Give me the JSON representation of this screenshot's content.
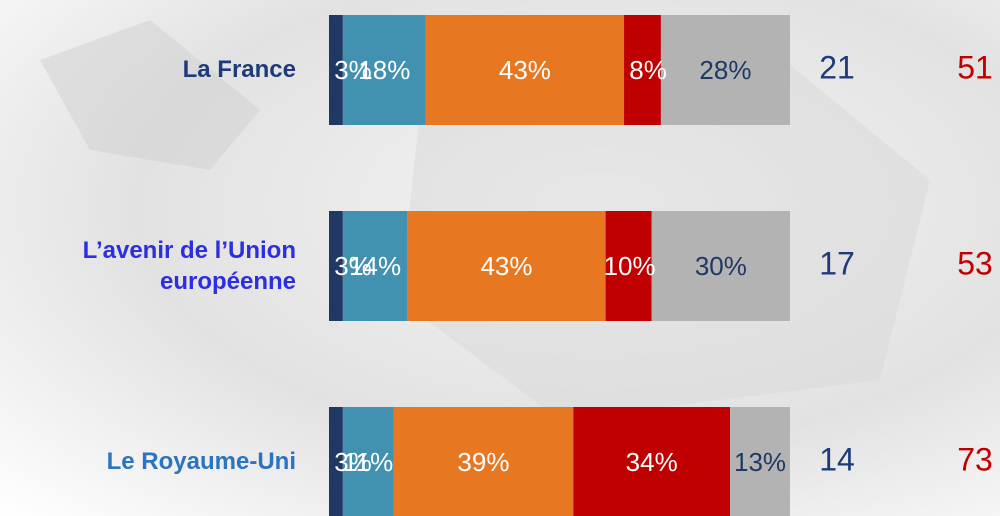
{
  "chart_data": {
    "type": "stacked-bar",
    "categories": [
      "La France",
      "L’avenir de l’Union européenne",
      "Le Royaume-Uni"
    ],
    "category_colors": [
      "#1f3a7a",
      "#2b2fe0",
      "#2a74c0"
    ],
    "series": [
      {
        "color": "#1f3864",
        "label_color": "#ffffff",
        "values": [
          3,
          3,
          3
        ],
        "value_labels": [
          "3%",
          "3%",
          "3%"
        ]
      },
      {
        "color": "#4391b1",
        "label_color": "#ffffff",
        "values": [
          18,
          14,
          11
        ],
        "value_labels": [
          "18%",
          "14%",
          "11%"
        ]
      },
      {
        "color": "#e87722",
        "label_color": "#ffffff",
        "values": [
          43,
          43,
          39
        ],
        "value_labels": [
          "43%",
          "43%",
          "39%"
        ]
      },
      {
        "color": "#c00000",
        "label_color": "#ffffff",
        "values": [
          8,
          10,
          34
        ],
        "value_labels": [
          "8%",
          "10%",
          "34%"
        ]
      },
      {
        "color": "#b3b3b3",
        "label_color": "#1f3864",
        "values": [
          28,
          30,
          13
        ],
        "value_labels": [
          "28%",
          "30%",
          "13%"
        ]
      }
    ],
    "side_values": [
      {
        "color": "#1f3a7a",
        "values": [
          21,
          17,
          14
        ]
      },
      {
        "color": "#c00000",
        "values": [
          51,
          53,
          73
        ]
      }
    ]
  }
}
